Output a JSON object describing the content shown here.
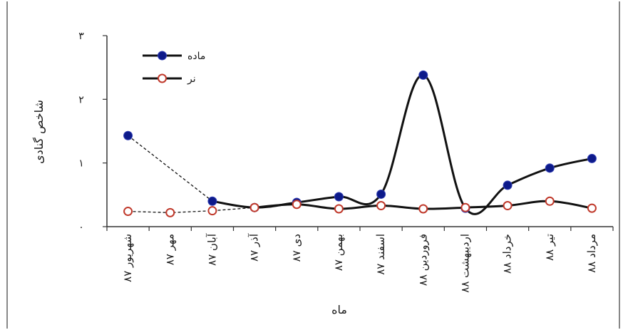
{
  "chart_data": {
    "type": "line",
    "xlabel": "ماه",
    "ylabel": "شاخص گنادی",
    "ylim": [
      0,
      3
    ],
    "yticks": [
      {
        "value": 0,
        "label": "۰"
      },
      {
        "value": 1,
        "label": "۱"
      },
      {
        "value": 2,
        "label": "۲"
      },
      {
        "value": 3,
        "label": "۳"
      }
    ],
    "categories": [
      "شهریور ۸۷",
      "مهر ۸۷",
      "آبان ۸۷",
      "آذر ۸۷",
      "دی ۸۷",
      "بهمن ۸۷",
      "اسفند ۸۷",
      "فروردین ۸۸",
      "اردیبهشت ۸۸",
      "خرداد ۸۸",
      "تیر ۸۸",
      "مرداد ۸۸"
    ],
    "series": [
      {
        "name": "ماده",
        "color": "#0d1a8a",
        "marker": "filled-circle",
        "values": [
          1.43,
          null,
          0.4,
          0.3,
          0.38,
          0.47,
          0.51,
          2.38,
          0.29,
          0.65,
          0.92,
          1.07
        ],
        "dashed_segments": [
          [
            0,
            2
          ]
        ]
      },
      {
        "name": "نر",
        "color": "#c0392b",
        "marker": "hollow-circle",
        "values": [
          0.24,
          0.22,
          0.25,
          0.3,
          0.35,
          0.28,
          0.33,
          0.28,
          0.3,
          0.33,
          0.4,
          0.29
        ],
        "dashed_segments": [
          [
            0,
            3
          ]
        ]
      }
    ],
    "legend": {
      "position": "top-left"
    },
    "grid": false
  }
}
